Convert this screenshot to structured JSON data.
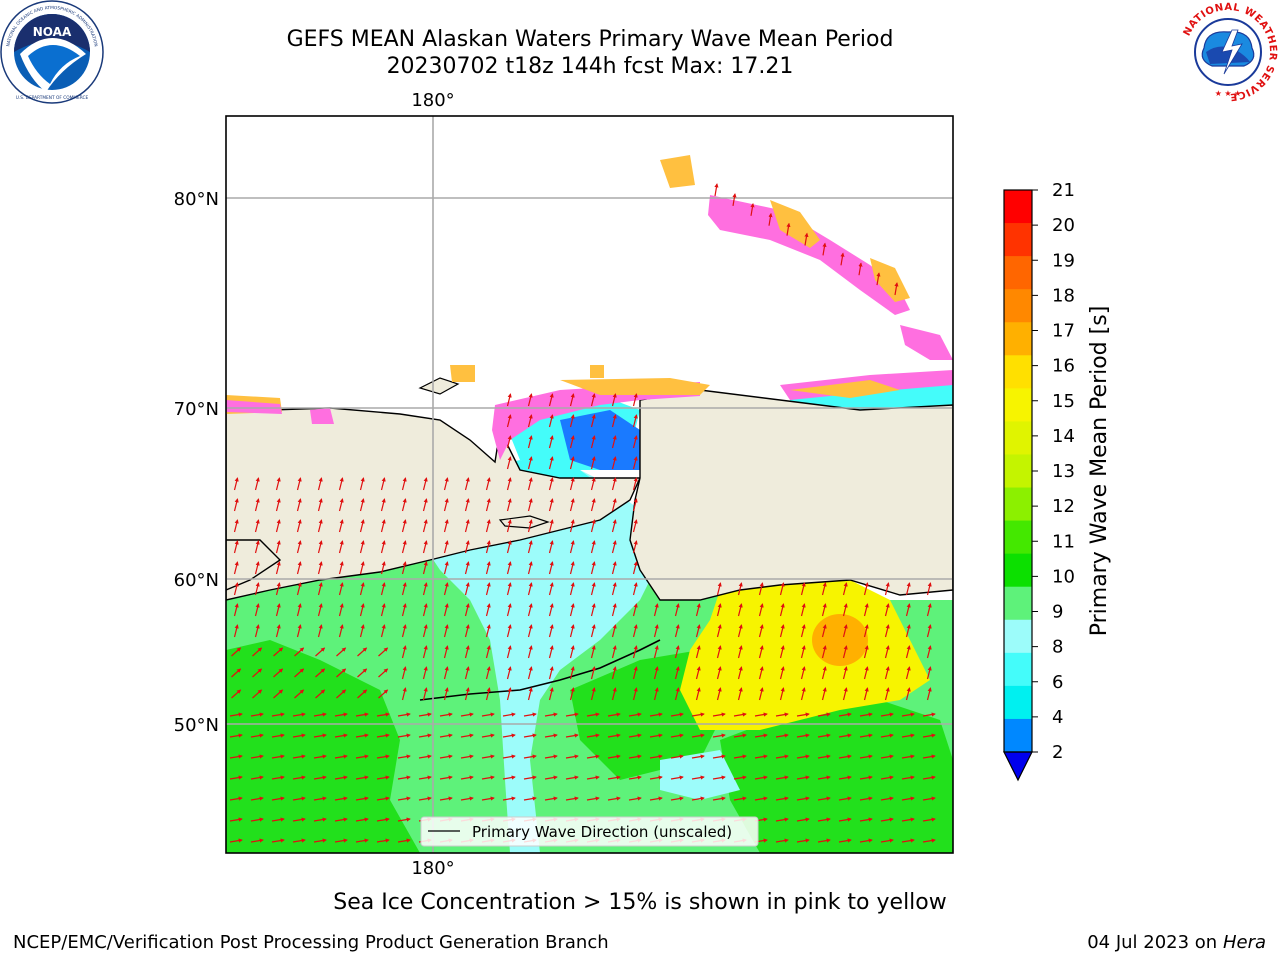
{
  "header": {
    "title_line1": "GEFS MEAN Alaskan Waters Primary Wave Mean Period",
    "title_line2": "20230702 t18z 144h fcst   Max: 17.21"
  },
  "logos": {
    "noaa": "NOAA",
    "noaa_ring_text": "NATIONAL OCEANIC AND ATMOSPHERIC ADMINISTRATION",
    "noaa_bottom_text": "U.S. DEPARTMENT OF COMMERCE",
    "nws_ring_text": "NATIONAL WEATHER SERVICE"
  },
  "map": {
    "lon_labels": {
      "top": "180°",
      "bottom": "180°"
    },
    "lat_labels": [
      "80°N",
      "70°N",
      "60°N",
      "50°N"
    ],
    "legend_label": "Primary Wave Direction (unscaled)",
    "colors": {
      "land": "#efecdc",
      "ocean_wave_cyan": "#9cfcfa",
      "ocean_wave_green": "#5ef27a",
      "ocean_wave_green_dark": "#22e01c",
      "ocean_wave_yellow": "#f7f400",
      "ice_pink": "#ff6fe0",
      "ice_orange": "#ffc040",
      "arrow": "#e01010"
    }
  },
  "colorbar": {
    "label": "Primary Wave Mean Period [s]",
    "ticks": [
      "21",
      "20",
      "19",
      "18",
      "17",
      "16",
      "15",
      "14",
      "13",
      "12",
      "11",
      "10",
      "9",
      "8",
      "6",
      "4",
      "2"
    ],
    "colors": [
      "#ff0000",
      "#ff3300",
      "#ff6600",
      "#ff8800",
      "#ffb000",
      "#ffe000",
      "#f7f400",
      "#e0f400",
      "#c4f400",
      "#8cf000",
      "#44e800",
      "#0ce000",
      "#5ef27a",
      "#9cfcfa",
      "#44fcfa",
      "#00f0f0",
      "#0088ff"
    ],
    "extend_color": "#0000ee"
  },
  "footer": {
    "ice_note": "Sea Ice Concentration > 15% is shown in pink to yellow",
    "left": "NCEP/EMC/Verification Post Processing Product Generation Branch",
    "date": "04 Jul 2023 on ",
    "machine": "Hera"
  }
}
